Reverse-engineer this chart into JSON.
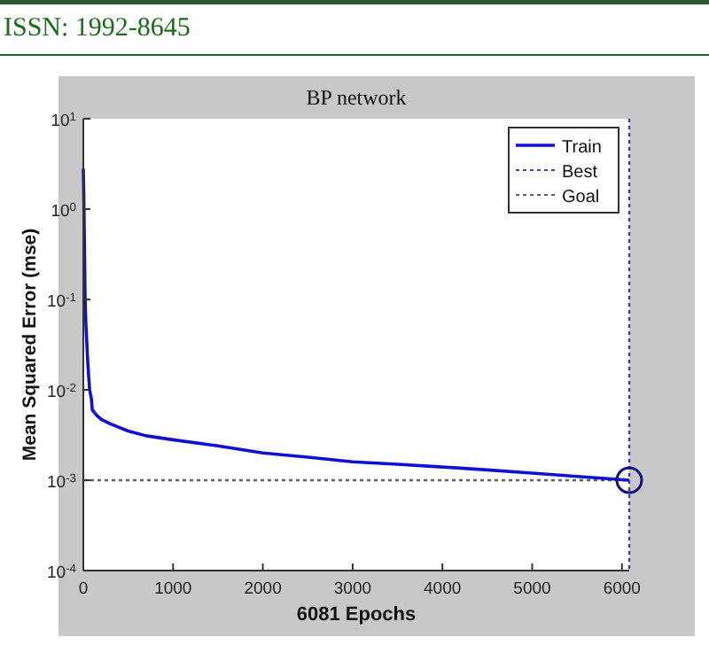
{
  "chart_data": {
    "type": "line",
    "title": "BP network",
    "xlabel": "6081 Epochs",
    "ylabel": "Mean Squared Error  (mse)",
    "annotations": [
      "ISSN: 1992-8645"
    ],
    "log": "y",
    "legend": "top right",
    "grid": false,
    "xlim": [
      0,
      6081
    ],
    "xticks": [
      0,
      1000,
      2000,
      3000,
      4000,
      5000,
      6000
    ],
    "ylim": [
      0.0001,
      10
    ],
    "yticks": [
      {
        "value": 0.0001,
        "label": "10$^{-4}$"
      },
      {
        "value": 0.001,
        "label": "10$^{-3}$"
      },
      {
        "value": 0.01,
        "label": "10$^{-2}$"
      },
      {
        "value": 0.1,
        "label": "10$^{-1}$"
      },
      {
        "value": 1,
        "label": "10$^{0}$"
      },
      {
        "value": 10,
        "label": "10$^{1}$"
      }
    ],
    "series": [
      {
        "name": "Train",
        "color": "#1010d0",
        "line_style": "solid",
        "x": [
          0,
          5,
          10,
          20,
          30,
          50,
          70,
          90,
          100,
          150,
          200,
          300,
          500,
          700,
          1000,
          1500,
          2000,
          2500,
          3000,
          3500,
          4000,
          4500,
          5000,
          5500,
          6081
        ],
        "values": [
          2.8,
          1.5,
          0.6,
          0.1,
          0.05,
          0.02,
          0.01,
          0.008,
          0.006,
          0.0052,
          0.0047,
          0.0042,
          0.0035,
          0.0031,
          0.0028,
          0.0024,
          0.002,
          0.0018,
          0.0016,
          0.0015,
          0.0014,
          0.0013,
          0.0012,
          0.0011,
          0.001
        ]
      },
      {
        "type": "scatter",
        "marker": "circle",
        "color": "#101080",
        "x": [
          6081
        ],
        "values": [
          0.001
        ]
      }
    ],
    "ref_lines": [
      {
        "axis": "x",
        "value": 6081,
        "label": "Best",
        "color": "#4040a0",
        "line_style": "dotted"
      },
      {
        "axis": "y",
        "value": 0.001,
        "label": "Goal",
        "color": "#606060",
        "line_style": "dotted"
      }
    ]
  }
}
